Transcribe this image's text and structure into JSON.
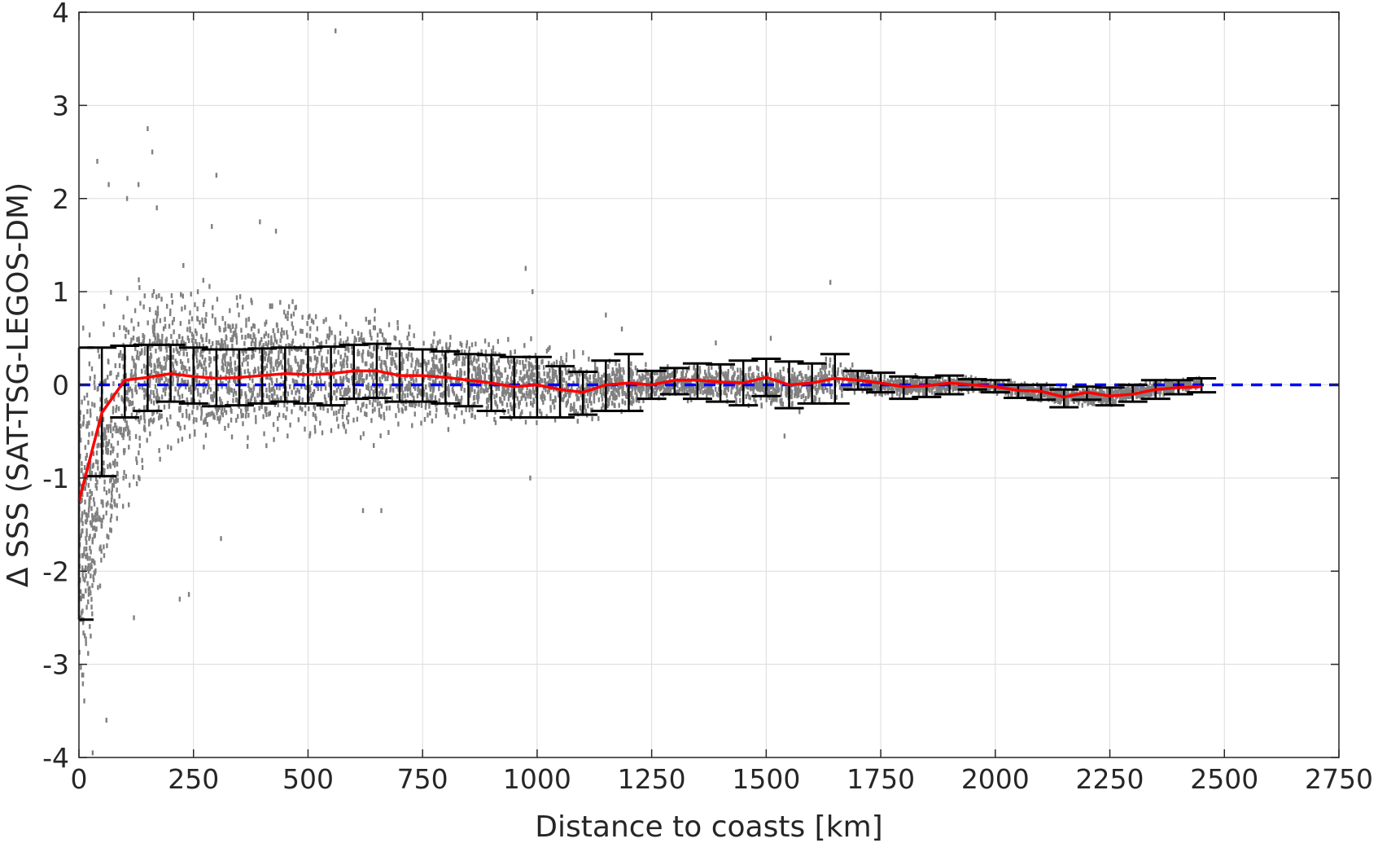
{
  "chart_data": {
    "type": "scatter",
    "title": "",
    "xlabel": "Distance to coasts [km]",
    "ylabel": "Δ SSS (SAT-TSG-LEGOS-DM)",
    "xlim": [
      0,
      2750
    ],
    "ylim": [
      -4,
      4
    ],
    "x_ticks": [
      0,
      250,
      500,
      750,
      1000,
      1250,
      1500,
      1750,
      2000,
      2250,
      2500,
      2750
    ],
    "y_ticks": [
      -4,
      -3,
      -2,
      -1,
      0,
      1,
      2,
      3,
      4
    ],
    "grid": true,
    "legend": "none",
    "colors": {
      "scatter": "#808080",
      "mean_line": "#ff0000",
      "error_bars": "#000000",
      "zero_line": "#0000ff"
    },
    "scatter_envelope": {
      "x": [
        5,
        50,
        100,
        150,
        200,
        250,
        300,
        350,
        400,
        450,
        500,
        550,
        600,
        650,
        700,
        750,
        800,
        850,
        900,
        950,
        1000,
        1050,
        1100,
        1150,
        1200,
        1250,
        1300,
        1350,
        1400,
        1450,
        1500,
        1550,
        1600,
        1650,
        1700,
        1750,
        1800,
        1850,
        1900,
        1950,
        2000,
        2050,
        2100,
        2150,
        2200,
        2250,
        2300,
        2350,
        2400,
        2450
      ],
      "upper": [
        0.9,
        1.1,
        1.3,
        1.4,
        1.35,
        1.3,
        1.25,
        1.2,
        1.15,
        1.1,
        1.05,
        1.0,
        0.95,
        0.9,
        0.8,
        0.75,
        0.7,
        0.65,
        0.6,
        0.55,
        0.5,
        0.45,
        0.4,
        0.35,
        0.3,
        0.25,
        0.25,
        0.25,
        0.25,
        0.3,
        0.3,
        0.25,
        0.25,
        0.35,
        0.2,
        0.15,
        0.15,
        0.12,
        0.1,
        0.1,
        0.08,
        0.05,
        0.05,
        0.0,
        0.0,
        0.0,
        0.05,
        0.05,
        0.08,
        0.1
      ],
      "lower": [
        -3.9,
        -3.0,
        -1.8,
        -1.1,
        -1.0,
        -1.0,
        -0.95,
        -0.9,
        -0.85,
        -0.85,
        -0.8,
        -0.75,
        -0.75,
        -0.7,
        -0.6,
        -0.6,
        -0.55,
        -0.5,
        -0.5,
        -0.55,
        -0.5,
        -0.45,
        -0.45,
        -0.4,
        -0.35,
        -0.2,
        -0.2,
        -0.2,
        -0.25,
        -0.25,
        -0.3,
        -0.35,
        -0.25,
        -0.2,
        -0.15,
        -0.15,
        -0.15,
        -0.15,
        -0.1,
        -0.1,
        -0.1,
        -0.15,
        -0.2,
        -0.25,
        -0.25,
        -0.25,
        -0.2,
        -0.15,
        -0.1,
        -0.05
      ]
    },
    "outliers": [
      {
        "x": 40,
        "y": 2.4
      },
      {
        "x": 65,
        "y": 2.15
      },
      {
        "x": 105,
        "y": 2.0
      },
      {
        "x": 130,
        "y": 2.15
      },
      {
        "x": 150,
        "y": 2.75
      },
      {
        "x": 160,
        "y": 2.5
      },
      {
        "x": 170,
        "y": 1.9
      },
      {
        "x": 300,
        "y": 2.25
      },
      {
        "x": 290,
        "y": 1.7
      },
      {
        "x": 560,
        "y": 3.8
      },
      {
        "x": 395,
        "y": 1.75
      },
      {
        "x": 430,
        "y": 1.65
      },
      {
        "x": 975,
        "y": 1.25
      },
      {
        "x": 1640,
        "y": 1.1
      },
      {
        "x": 1390,
        "y": 0.45
      },
      {
        "x": 1510,
        "y": 0.5
      },
      {
        "x": 1185,
        "y": 0.6
      },
      {
        "x": 1150,
        "y": 0.75
      },
      {
        "x": 990,
        "y": 1.0
      },
      {
        "x": 120,
        "y": -2.5
      },
      {
        "x": 220,
        "y": -2.3
      },
      {
        "x": 240,
        "y": -2.25
      },
      {
        "x": 310,
        "y": -1.65
      },
      {
        "x": 620,
        "y": -1.35
      },
      {
        "x": 660,
        "y": -1.35
      },
      {
        "x": 985,
        "y": -1.0
      },
      {
        "x": 1540,
        "y": -0.55
      },
      {
        "x": 30,
        "y": -3.95
      },
      {
        "x": 60,
        "y": -3.6
      }
    ],
    "mean_line": {
      "x": [
        0,
        50,
        100,
        150,
        200,
        250,
        300,
        350,
        400,
        450,
        500,
        550,
        600,
        650,
        700,
        750,
        800,
        850,
        900,
        950,
        1000,
        1050,
        1100,
        1150,
        1200,
        1250,
        1300,
        1350,
        1400,
        1450,
        1500,
        1550,
        1600,
        1650,
        1700,
        1750,
        1800,
        1850,
        1900,
        1950,
        2000,
        2050,
        2100,
        2150,
        2200,
        2250,
        2300,
        2350,
        2400,
        2450
      ],
      "y": [
        -1.25,
        -0.3,
        0.05,
        0.08,
        0.12,
        0.09,
        0.07,
        0.08,
        0.1,
        0.12,
        0.11,
        0.12,
        0.15,
        0.15,
        0.1,
        0.1,
        0.08,
        0.05,
        0.02,
        -0.02,
        0.0,
        -0.05,
        -0.08,
        0.0,
        0.02,
        0.0,
        0.05,
        0.05,
        0.03,
        0.02,
        0.08,
        0.0,
        0.02,
        0.07,
        0.05,
        0.02,
        -0.02,
        -0.01,
        0.02,
        0.0,
        -0.02,
        -0.06,
        -0.07,
        -0.13,
        -0.08,
        -0.12,
        -0.1,
        -0.05,
        -0.03,
        -0.02
      ]
    },
    "error_bars": {
      "x": [
        0,
        50,
        100,
        150,
        200,
        250,
        300,
        350,
        400,
        450,
        500,
        550,
        600,
        650,
        700,
        750,
        800,
        850,
        900,
        950,
        1000,
        1050,
        1100,
        1150,
        1200,
        1250,
        1300,
        1350,
        1400,
        1450,
        1500,
        1550,
        1600,
        1650,
        1700,
        1750,
        1800,
        1850,
        1900,
        1950,
        2000,
        2050,
        2100,
        2150,
        2200,
        2250,
        2300,
        2350,
        2400,
        2450
      ],
      "upper": [
        0.4,
        0.4,
        0.42,
        0.43,
        0.43,
        0.4,
        0.38,
        0.38,
        0.39,
        0.4,
        0.4,
        0.41,
        0.43,
        0.44,
        0.39,
        0.38,
        0.36,
        0.33,
        0.32,
        0.3,
        0.3,
        0.2,
        0.14,
        0.26,
        0.33,
        0.15,
        0.18,
        0.23,
        0.22,
        0.26,
        0.28,
        0.25,
        0.23,
        0.33,
        0.15,
        0.13,
        0.09,
        0.08,
        0.1,
        0.06,
        0.05,
        0.0,
        0.0,
        -0.05,
        -0.02,
        -0.03,
        0.0,
        0.05,
        0.05,
        0.07
      ],
      "lower": [
        -2.52,
        -0.98,
        -0.35,
        -0.28,
        -0.18,
        -0.2,
        -0.23,
        -0.22,
        -0.2,
        -0.18,
        -0.2,
        -0.22,
        -0.15,
        -0.14,
        -0.18,
        -0.18,
        -0.2,
        -0.23,
        -0.28,
        -0.35,
        -0.35,
        -0.35,
        -0.32,
        -0.28,
        -0.28,
        -0.15,
        -0.1,
        -0.15,
        -0.18,
        -0.22,
        -0.12,
        -0.25,
        -0.2,
        -0.2,
        -0.05,
        -0.08,
        -0.15,
        -0.13,
        -0.1,
        -0.05,
        -0.08,
        -0.14,
        -0.16,
        -0.24,
        -0.16,
        -0.22,
        -0.18,
        -0.15,
        -0.1,
        -0.08
      ]
    },
    "zero_line": {
      "y": 0,
      "x": [
        0,
        2750
      ]
    }
  }
}
